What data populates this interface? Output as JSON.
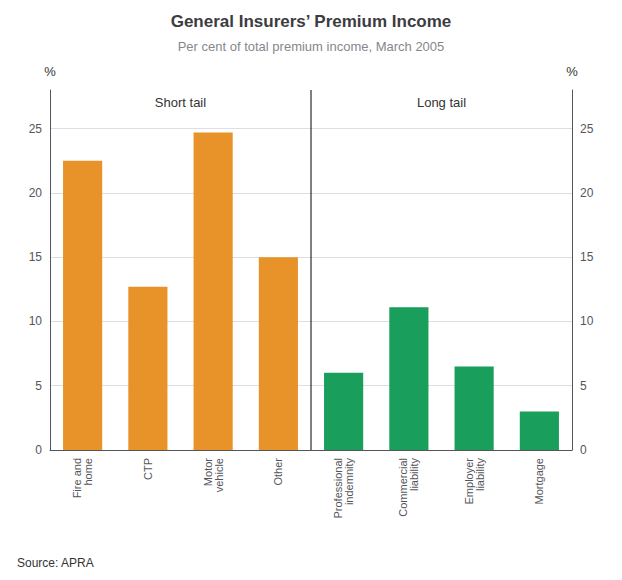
{
  "chart_data": {
    "type": "bar",
    "title": "General Insurers’ Premium Income",
    "subtitle": "Per cent of total premium income, March 2005",
    "categories": [
      "Fire and\nhome",
      "CTP",
      "Motor\nvehicle",
      "Other",
      "Professional\nindemnity",
      "Commercial\nliability",
      "Employer\nliability",
      "Mortgage"
    ],
    "values": [
      22.5,
      12.7,
      24.7,
      15.0,
      6.0,
      11.1,
      6.5,
      3.0
    ],
    "colors": [
      "#E8922A",
      "#E8922A",
      "#E8922A",
      "#E8922A",
      "#1A9E5C",
      "#1A9E5C",
      "#1A9E5C",
      "#1A9E5C"
    ],
    "annotations": [
      "Short tail",
      "Long tail"
    ],
    "ylabel": "%",
    "y2label": "%",
    "ylim": [
      0,
      28
    ],
    "yticks": [
      0,
      5,
      10,
      15,
      20,
      25
    ],
    "y2lim": [
      0,
      28
    ],
    "y2ticks": [
      0,
      5,
      10,
      15,
      20,
      25
    ],
    "grid": true,
    "source": "Source: APRA"
  }
}
